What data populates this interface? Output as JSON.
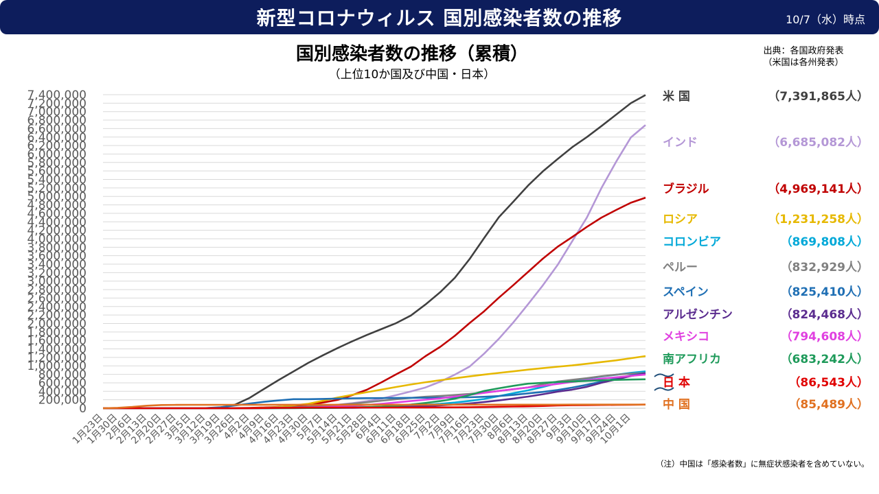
{
  "header": {
    "title": "新型コロナウィルス 国別感染者数の推移",
    "date": "10/7（水）時点"
  },
  "chart_title": "国別感染者数の推移（累積）",
  "chart_subtitle": "（上位10か国及び中国・日本）",
  "source": {
    "line1": "出典：各国政府発表",
    "line2": "（米国は各州発表）"
  },
  "note": "（注）中国は「感染者数」に無症状感染者を含めていない。",
  "colors": {
    "banner": "#0d1d5c",
    "grid": "#d9d9d9",
    "axis_text": "#595959"
  },
  "legend": [
    {
      "name": "米 国",
      "value": "（7,391,865人）",
      "color": "#404040"
    },
    {
      "name": "インド",
      "value": "（6,685,082人）",
      "color": "#b497d6"
    },
    {
      "name": "ブラジル",
      "value": "（4,969,141人）",
      "color": "#c00000"
    },
    {
      "name": "ロシア",
      "value": "（1,231,258人）",
      "color": "#e6b800"
    },
    {
      "name": "コロンビア",
      "value": "（869,808人）",
      "color": "#00a8d8"
    },
    {
      "name": "ペルー",
      "value": "（832,929人）",
      "color": "#808080"
    },
    {
      "name": "スペイン",
      "value": "（825,410人）",
      "color": "#1f6fb4"
    },
    {
      "name": "アルゼンチン",
      "value": "（824,468人）",
      "color": "#5b2c8f"
    },
    {
      "name": "メキシコ",
      "value": "（794,608人）",
      "color": "#e040e0"
    },
    {
      "name": "南アフリカ",
      "value": "（683,242人）",
      "color": "#1e9a5a"
    },
    {
      "name": "日 本",
      "value": "（86,543人）",
      "color": "#e00000"
    },
    {
      "name": "中 国",
      "value": "（85,489人）",
      "color": "#e07020"
    }
  ],
  "chart_data": {
    "type": "line",
    "title": "国別感染者数の推移（累積）",
    "ylim": [
      0,
      7400000
    ],
    "ytick_step": 200000,
    "yticks": [
      "0",
      "200,000",
      "400,000",
      "600,000",
      "800,000",
      "1,000,000",
      "1,200,000",
      "1,400,000",
      "1,600,000",
      "1,800,000",
      "2,000,000",
      "2,200,000",
      "2,400,000",
      "2,600,000",
      "2,800,000",
      "3,000,000",
      "3,200,000",
      "3,400,000",
      "3,600,000",
      "3,800,000",
      "4,000,000",
      "4,200,000",
      "4,400,000",
      "4,600,000",
      "4,800,000",
      "5,000,000",
      "5,200,000",
      "5,400,000",
      "5,600,000",
      "5,800,000",
      "6,000,000",
      "6,200,000",
      "6,400,000",
      "6,600,000",
      "6,800,000",
      "7,000,000",
      "7,200,000",
      "7,400,000"
    ],
    "x": [
      "1月23日",
      "1月30日",
      "2月6日",
      "2月13日",
      "2月20日",
      "2月27日",
      "3月5日",
      "3月12日",
      "3月19日",
      "3月26日",
      "4月2日",
      "4月9日",
      "4月16日",
      "4月23日",
      "4月30日",
      "5月7日",
      "5月14日",
      "5月21日",
      "5月28日",
      "6月4日",
      "6月11日",
      "6月18日",
      "6月25日",
      "7月2日",
      "7月9日",
      "7月16日",
      "7月23日",
      "7月30日",
      "8月6日",
      "8月13日",
      "8月20日",
      "8月27日",
      "9月3日",
      "9月10日",
      "9月17日",
      "9月24日",
      "10月1日",
      "10月7日"
    ],
    "xticks_shown": [
      "1月23日",
      "1月30日",
      "2月6日",
      "2月13日",
      "2月20日",
      "2月27日",
      "3月5日",
      "3月12日",
      "3月19日",
      "3月26日",
      "4月2日",
      "4月9日",
      "4月16日",
      "4月23日",
      "4月30日",
      "5月7日",
      "5月14日",
      "5月21日",
      "5月28日",
      "6月4日",
      "6月11日",
      "6月18日",
      "6月25日",
      "7月2日",
      "7月9日",
      "7月16日",
      "7月23日",
      "7月30日",
      "8月6日",
      "8月13日",
      "8月20日",
      "8月27日",
      "9月3日",
      "9月10日",
      "9月17日",
      "9月24日",
      "10月1日"
    ],
    "legend_position": "right",
    "grid": true,
    "series": [
      {
        "name": "米 国",
        "color": "#404040",
        "values": [
          0,
          0,
          0,
          0,
          0,
          0,
          200,
          2000,
          14000,
          85000,
          245000,
          460000,
          670000,
          870000,
          1070000,
          1250000,
          1420000,
          1580000,
          1730000,
          1870000,
          2010000,
          2190000,
          2450000,
          2740000,
          3080000,
          3520000,
          4020000,
          4510000,
          4880000,
          5260000,
          5590000,
          5880000,
          6160000,
          6400000,
          6660000,
          6930000,
          7200000,
          7391865
        ]
      },
      {
        "name": "インド",
        "color": "#b497d6",
        "values": [
          0,
          0,
          0,
          0,
          0,
          0,
          0,
          0,
          0,
          700,
          2500,
          6700,
          13400,
          23000,
          35000,
          56000,
          82000,
          118000,
          165000,
          227000,
          309000,
          396000,
          491000,
          626000,
          794000,
          983000,
          1290000,
          1640000,
          2030000,
          2460000,
          2900000,
          3380000,
          3940000,
          4500000,
          5200000,
          5820000,
          6390000,
          6685082
        ]
      },
      {
        "name": "ブラジル",
        "color": "#c00000",
        "values": [
          0,
          0,
          0,
          0,
          0,
          0,
          0,
          0,
          500,
          2500,
          8000,
          18000,
          30000,
          46000,
          85000,
          135000,
          196000,
          310000,
          438000,
          614000,
          802000,
          983000,
          1230000,
          1450000,
          1710000,
          2010000,
          2290000,
          2610000,
          2910000,
          3220000,
          3530000,
          3810000,
          4040000,
          4280000,
          4500000,
          4680000,
          4850000,
          4969141
        ]
      },
      {
        "name": "ロシア",
        "color": "#e6b800",
        "values": [
          0,
          0,
          0,
          0,
          0,
          0,
          0,
          30,
          200,
          1000,
          4000,
          10000,
          28000,
          68000,
          106000,
          177000,
          252000,
          317000,
          379000,
          441000,
          502000,
          561000,
          614000,
          662000,
          707000,
          752000,
          795000,
          834000,
          871000,
          912000,
          946000,
          980000,
          1010000,
          1050000,
          1090000,
          1130000,
          1180000,
          1231258
        ]
      },
      {
        "name": "コロンビア",
        "color": "#00a8d8",
        "values": [
          0,
          0,
          0,
          0,
          0,
          0,
          0,
          0,
          100,
          500,
          1200,
          2500,
          3500,
          4600,
          6500,
          9000,
          13000,
          18000,
          25000,
          36000,
          50000,
          68000,
          84000,
          103000,
          134000,
          173000,
          218000,
          286000,
          357000,
          423000,
          502000,
          590000,
          650000,
          700000,
          750000,
          790000,
          835000,
          869808
        ]
      },
      {
        "name": "ペルー",
        "color": "#808080",
        "values": [
          0,
          0,
          0,
          0,
          0,
          0,
          0,
          0,
          200,
          600,
          1400,
          5000,
          14000,
          25000,
          40000,
          58000,
          80000,
          108000,
          141000,
          178000,
          214000,
          244000,
          272000,
          292000,
          312000,
          338000,
          372000,
          408000,
          448000,
          490000,
          568000,
          630000,
          670000,
          710000,
          756000,
          794000,
          818000,
          832929
        ]
      },
      {
        "name": "スペイン",
        "color": "#1f6fb4",
        "values": [
          0,
          0,
          0,
          0,
          0,
          0,
          400,
          3000,
          25000,
          65000,
          110000,
          153000,
          185000,
          213000,
          213000,
          221000,
          229000,
          233000,
          238000,
          240000,
          243000,
          246000,
          248000,
          250000,
          252000,
          259000,
          270000,
          288000,
          314000,
          351000,
          386000,
          430000,
          488000,
          554000,
          630000,
          700000,
          778000,
          825410
        ]
      },
      {
        "name": "アルゼンチン",
        "color": "#5b2c8f",
        "values": [
          0,
          0,
          0,
          0,
          0,
          0,
          0,
          0,
          100,
          500,
          1100,
          1800,
          2700,
          3400,
          4400,
          5400,
          6900,
          9300,
          14000,
          19000,
          26000,
          36000,
          50000,
          68000,
          88000,
          114000,
          148000,
          185000,
          229000,
          276000,
          331000,
          392000,
          439000,
          506000,
          600000,
          680000,
          760000,
          824468
        ]
      },
      {
        "name": "メキシコ",
        "color": "#e040e0",
        "values": [
          0,
          0,
          0,
          0,
          0,
          0,
          0,
          0,
          100,
          500,
          1400,
          3200,
          6300,
          11000,
          19000,
          28000,
          40000,
          56000,
          78000,
          104000,
          136000,
          170000,
          203000,
          231000,
          275000,
          318000,
          362000,
          408000,
          450000,
          490000,
          530000,
          574000,
          620000,
          660000,
          700000,
          730000,
          765000,
          794608
        ]
      },
      {
        "name": "南アフリカ",
        "color": "#1e9a5a",
        "values": [
          0,
          0,
          0,
          0,
          0,
          0,
          0,
          0,
          100,
          900,
          1400,
          1900,
          2600,
          3900,
          5600,
          8200,
          12000,
          19000,
          27000,
          38000,
          58000,
          88000,
          125000,
          168000,
          225000,
          311000,
          408000,
          471000,
          529000,
          579000,
          600000,
          620000,
          630000,
          645000,
          660000,
          668000,
          677000,
          683242
        ]
      },
      {
        "name": "日 本",
        "color": "#e00000",
        "values": [
          0,
          0,
          20,
          30,
          90,
          200,
          330,
          600,
          950,
          1300,
          2400,
          5500,
          9300,
          12000,
          14000,
          15400,
          16100,
          16500,
          16800,
          17000,
          17400,
          17800,
          18300,
          18900,
          20300,
          23500,
          29000,
          35000,
          40000,
          45000,
          54000,
          65000,
          71000,
          74000,
          77000,
          80000,
          83000,
          86543
        ]
      },
      {
        "name": "中 国",
        "color": "#e07020",
        "values": [
          600,
          9700,
          31000,
          60000,
          75500,
          78800,
          80700,
          80800,
          81000,
          81300,
          81600,
          81900,
          82700,
          82800,
          82900,
          82900,
          82900,
          82900,
          83000,
          83000,
          83100,
          83300,
          83500,
          83600,
          83600,
          83600,
          83800,
          84100,
          84500,
          84700,
          84900,
          85000,
          85100,
          85200,
          85300,
          85300,
          85400,
          85489
        ]
      }
    ]
  }
}
